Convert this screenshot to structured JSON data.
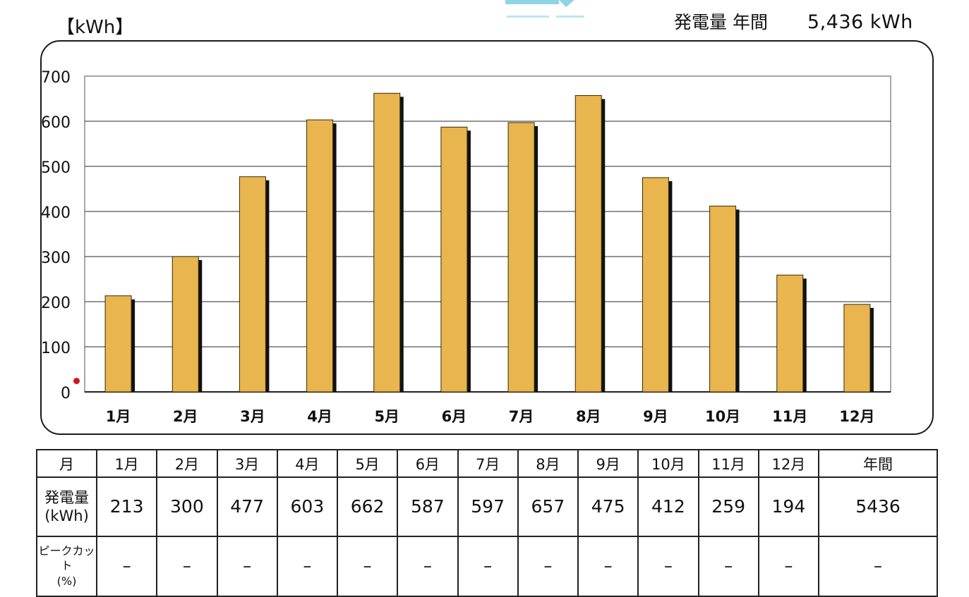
{
  "header": {
    "unit_label": "【kWh】",
    "annual_label": "発電量  年間",
    "annual_value": "5,436 kWh"
  },
  "chart_data": {
    "type": "bar",
    "categories": [
      "1月",
      "2月",
      "3月",
      "4月",
      "5月",
      "6月",
      "7月",
      "8月",
      "9月",
      "10月",
      "11月",
      "12月"
    ],
    "values": [
      213,
      300,
      477,
      603,
      662,
      587,
      597,
      657,
      475,
      412,
      259,
      194
    ],
    "ylim": [
      0,
      700
    ],
    "yticks": [
      0,
      100,
      200,
      300,
      400,
      500,
      600,
      700
    ],
    "grid": true,
    "bar_color": "#E8B54E",
    "shadow_color": "#111111"
  },
  "table": {
    "header_cells": [
      "月",
      "1月",
      "2月",
      "3月",
      "4月",
      "5月",
      "6月",
      "7月",
      "8月",
      "9月",
      "10月",
      "11月",
      "12月",
      "年間"
    ],
    "generation_label_1": "発電量",
    "generation_label_2": "(kWh)",
    "generation_values": [
      "213",
      "300",
      "477",
      "603",
      "662",
      "587",
      "597",
      "657",
      "475",
      "412",
      "259",
      "194",
      "5436"
    ],
    "peak_label_1": "ピークカッ",
    "peak_label_2": "ト",
    "peak_label_3": "(%)",
    "peak_values": [
      "–",
      "–",
      "–",
      "–",
      "–",
      "–",
      "–",
      "–",
      "–",
      "–",
      "–",
      "–",
      "–"
    ]
  }
}
